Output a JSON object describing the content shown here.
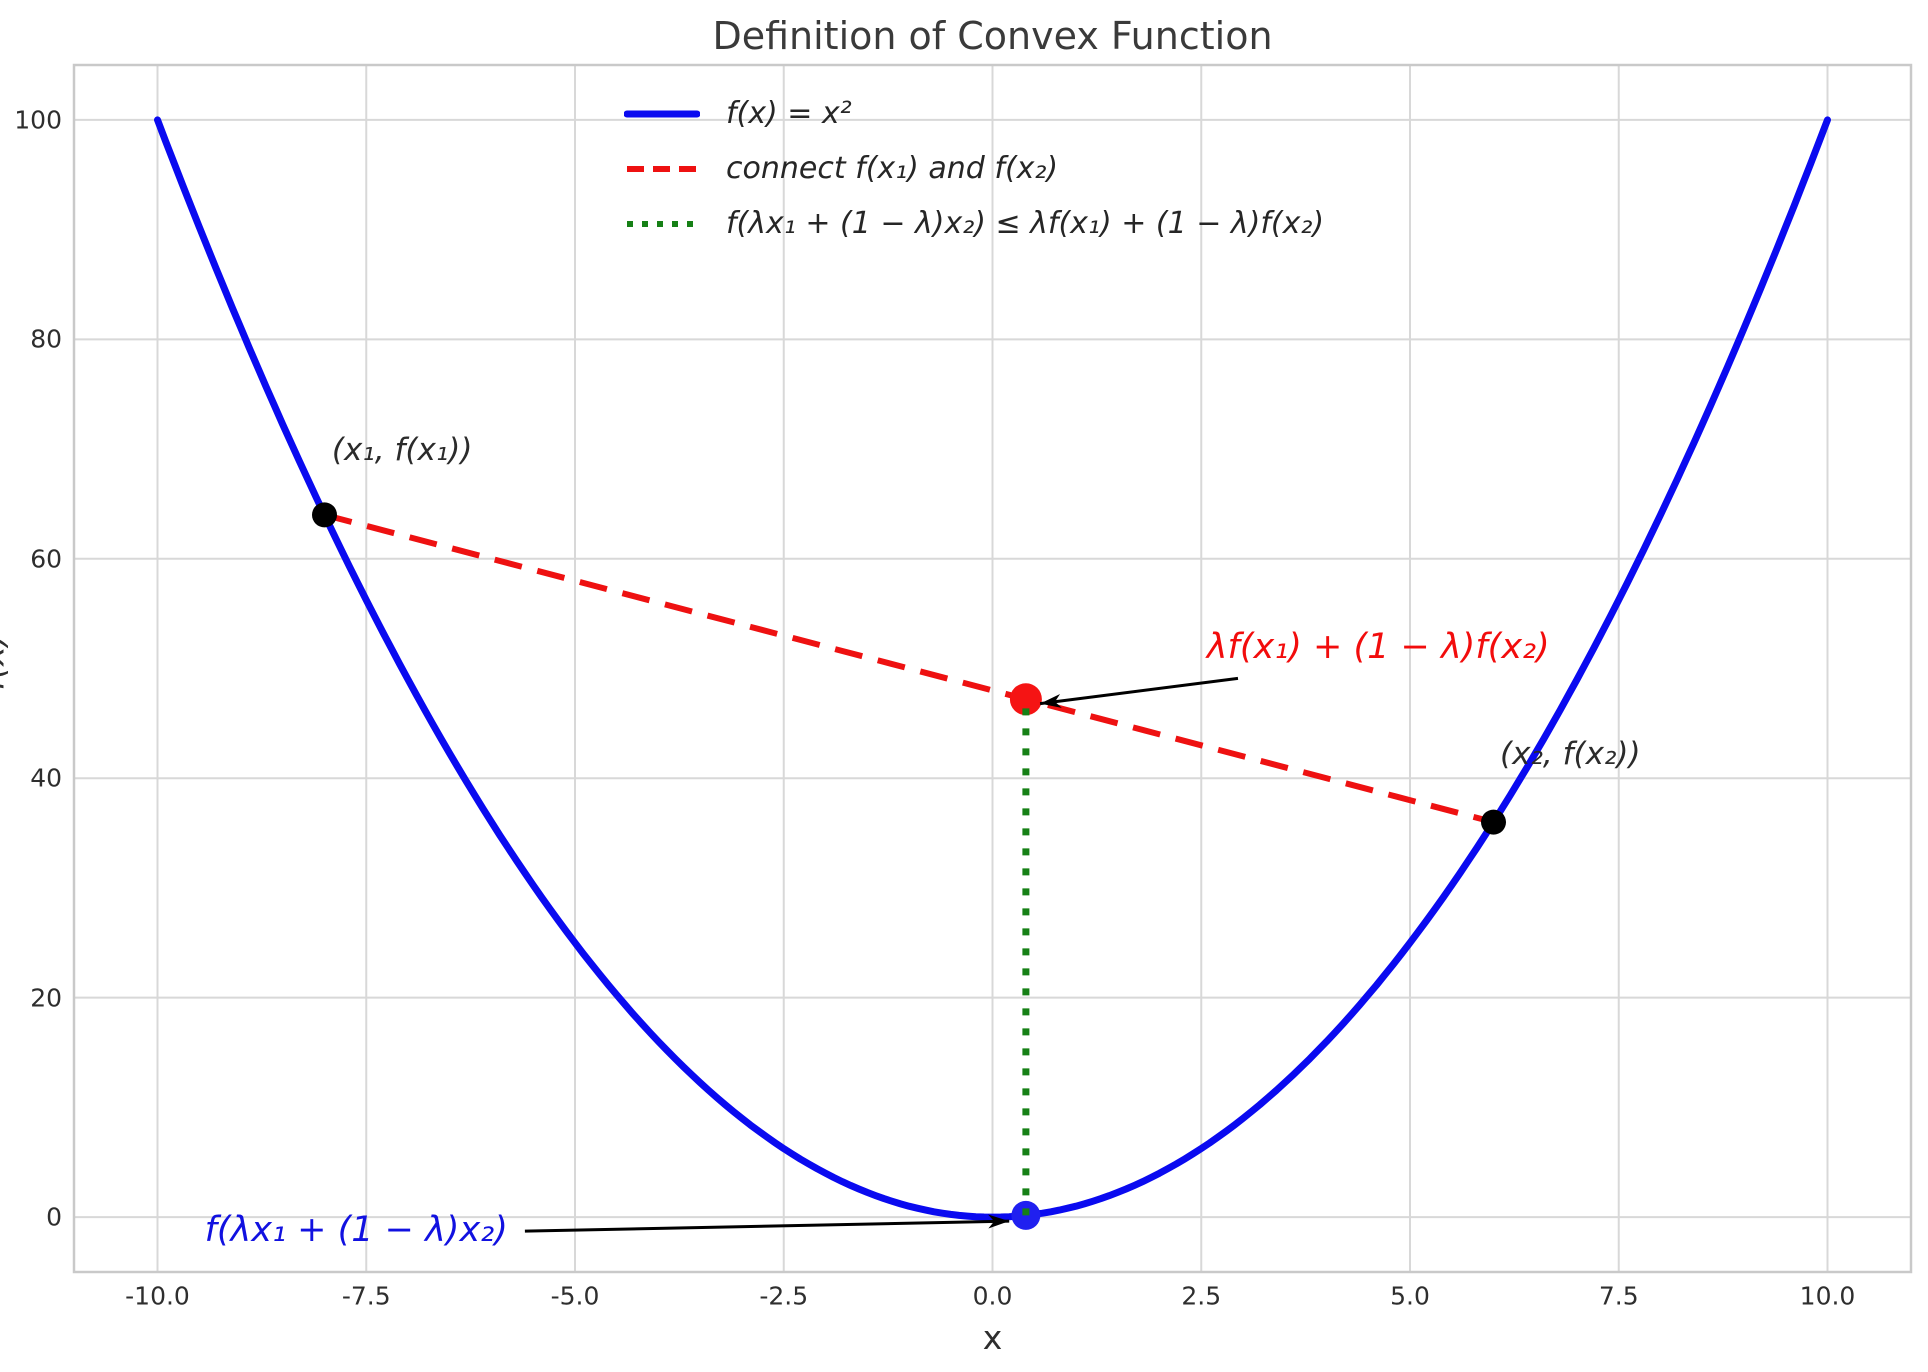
{
  "chart_data": {
    "type": "line",
    "title": "Definition of Convex Function",
    "xlabel": "x",
    "ylabel": "f(x)",
    "xlim": [
      -11,
      11
    ],
    "ylim": [
      -5,
      105
    ],
    "grid": true,
    "legend_position": "upper left of plot, no frame",
    "xticks": [
      -10.0,
      -7.5,
      -5.0,
      -2.5,
      0.0,
      2.5,
      5.0,
      7.5,
      10.0
    ],
    "xtick_labels": [
      "-10.0",
      "-7.5",
      "-5.0",
      "-2.5",
      "0.0",
      "2.5",
      "5.0",
      "7.5",
      "10.0"
    ],
    "yticks": [
      0,
      20,
      40,
      60,
      80,
      100
    ],
    "ytick_labels": [
      "0",
      "20",
      "40",
      "60",
      "80",
      "100"
    ],
    "grid_color": "#d8d8d8",
    "spine_color": "#c9c9c9",
    "series": [
      {
        "name": "f(x) = x²",
        "kind": "function",
        "expr": "x^2",
        "x_range": [
          -10,
          10
        ],
        "style": "solid",
        "color": "#0a0af0",
        "linewidth": 7
      },
      {
        "name": "connect f(x₁) and f(x₂)",
        "kind": "segment",
        "from": [
          -8,
          64
        ],
        "to": [
          6,
          36
        ],
        "style": "dashed",
        "color": "#ee1111",
        "linewidth": 6
      },
      {
        "name": "f(λx₁ + (1 − λ)x₂) ≤ λf(x₁) + (1 − λ)f(x₂)",
        "kind": "segment",
        "from": [
          0.4,
          0.16
        ],
        "to": [
          0.4,
          47.2
        ],
        "style": "dotted",
        "color": "#168016",
        "linewidth": 7
      }
    ],
    "points": [
      {
        "label": "(x₁, f(x₁))",
        "x": -8,
        "y": 64,
        "color": "#000000",
        "radius": 12.5,
        "label_center": [
          -7.07,
          69.9
        ],
        "label_color": "#2b2b2b",
        "label_size": 31
      },
      {
        "label": "(x₂, f(x₂))",
        "x": 6,
        "y": 36,
        "color": "#000000",
        "radius": 12.5,
        "label_center": [
          6.92,
          42.2
        ],
        "label_color": "#2b2b2b",
        "label_size": 31
      },
      {
        "x": 0.4,
        "y": 47.2,
        "color": "#f51414",
        "radius": 16
      },
      {
        "x": 0.4,
        "y": 0.16,
        "color": "#2020f0",
        "radius": 14.5
      }
    ],
    "annotations": [
      {
        "text": "λf(x₁) + (1 − λ)f(x₂)",
        "color": "#f20c0c",
        "size": 35,
        "text_center": [
          4.62,
          52.0
        ],
        "arrow": {
          "from": [
            2.94,
            49.1
          ],
          "to": [
            0.57,
            46.8
          ]
        }
      },
      {
        "text": "f(λx₁ + (1 − λ)x₂)",
        "color": "#1111e0",
        "size": 35,
        "text_center": [
          -7.62,
          -1.2
        ],
        "arrow": {
          "from": [
            -5.6,
            -1.28
          ],
          "to": [
            0.2,
            -0.36
          ]
        }
      }
    ]
  }
}
